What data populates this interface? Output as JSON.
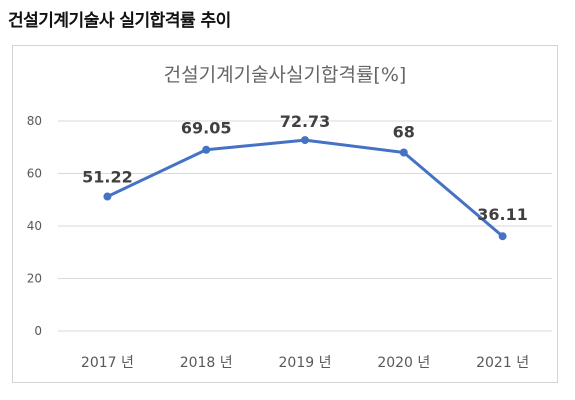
{
  "page_heading": "건설기계기술사 실기합격률 추이",
  "chart_data": {
    "type": "line",
    "title": "건설기계기술사실기합격률[%]",
    "xlabel": "",
    "ylabel": "",
    "categories": [
      "2017 년",
      "2018 년",
      "2019 년",
      "2020 년",
      "2021 년"
    ],
    "series": [
      {
        "values": [
          51.22,
          69.05,
          72.73,
          68,
          36.11
        ]
      }
    ],
    "data_labels": [
      "51.22",
      "69.05",
      "72.73",
      "68",
      "36.11"
    ],
    "ylim": [
      0,
      80
    ],
    "yticks": [
      "0",
      "20",
      "40",
      "60",
      "80"
    ],
    "grid": true,
    "legend": "none",
    "line_color": "#4472C4"
  }
}
